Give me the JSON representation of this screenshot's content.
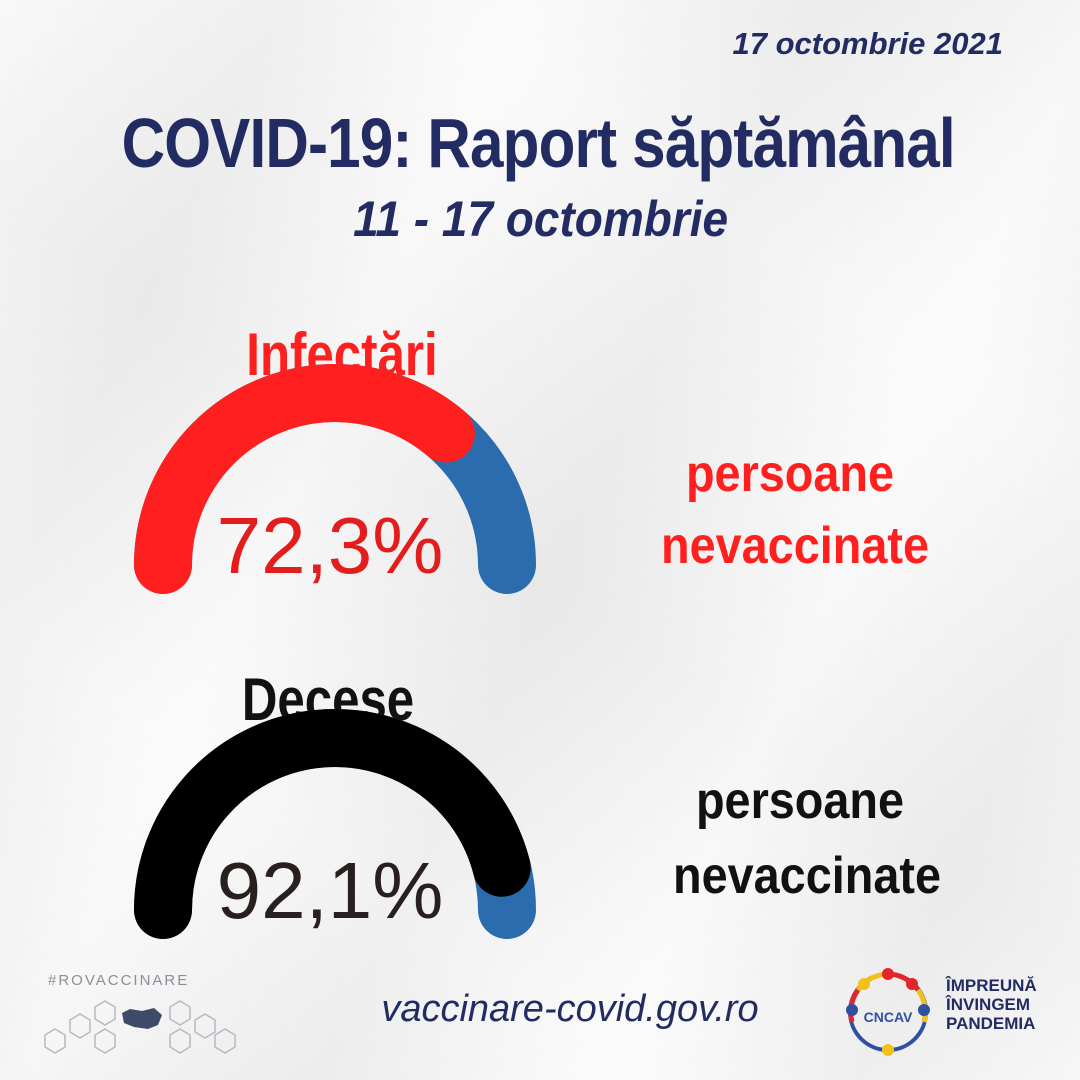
{
  "header": {
    "date": "17 octombrie 2021",
    "title": "COVID-19: Raport săptămânal",
    "subtitle": "11 - 17 octombrie"
  },
  "infections": {
    "label": "Infectări",
    "percent_text": "72,3%",
    "value": 72.3,
    "side_line1": "persoane",
    "side_line2": "nevaccinate",
    "label_color": "#ff1f1f",
    "arc_color": "#ff1f1f",
    "rest_color": "#2b6cae",
    "percent_color": "#e31d1d"
  },
  "deaths": {
    "label": "Decese",
    "percent_text": "92,1%",
    "value": 92.1,
    "side_line1": "persoane",
    "side_line2": "nevaccinate",
    "label_color": "#111111",
    "arc_color": "#000000",
    "rest_color": "#2b6cae",
    "percent_color": "#2a1f1f"
  },
  "footer": {
    "hashtag": "#ROVACCINARE",
    "url": "vaccinare-covid.gov.ro",
    "logo_text": "CNCAV",
    "brand_line1": "ÎMPREUNĂ",
    "brand_line2": "ÎNVINGEM",
    "brand_line3": "PANDEMIA"
  }
}
